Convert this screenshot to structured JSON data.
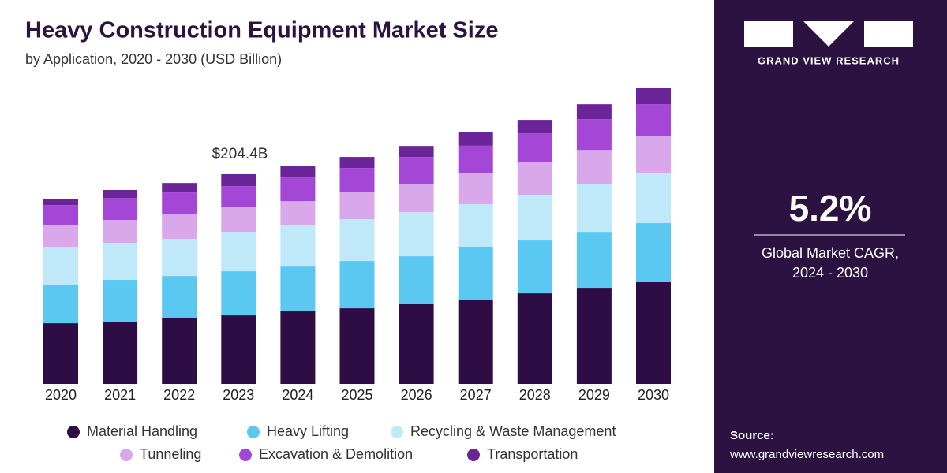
{
  "chart_data": {
    "type": "stacked-bar",
    "title": "Heavy Construction Equipment Market Size",
    "subtitle": "by Application, 2020 - 2030 (USD Billion)",
    "annotation": "$204.4B",
    "categories": [
      "2020",
      "2021",
      "2022",
      "2023",
      "2024",
      "2025",
      "2026",
      "2027",
      "2028",
      "2029",
      "2030"
    ],
    "series": [
      {
        "name": "Material Handling",
        "color": "#2e0d45",
        "values": [
          59.1,
          60.7,
          64.5,
          66.8,
          71.4,
          73.7,
          77.6,
          82.2,
          88.3,
          93.7,
          99.1
        ]
      },
      {
        "name": "Heavy Lifting",
        "color": "#5bc8f2",
        "values": [
          37.6,
          40.7,
          40.7,
          43.0,
          43.0,
          46.1,
          46.8,
          51.5,
          51.5,
          54.5,
          57.6
        ]
      },
      {
        "name": "Recycling & Waste Management",
        "color": "#bfe9f8",
        "values": [
          36.9,
          36.1,
          36.1,
          38.4,
          39.9,
          40.7,
          43.0,
          41.5,
          44.5,
          46.8,
          49.2
        ]
      },
      {
        "name": "Tunneling",
        "color": "#d9a8ea",
        "values": [
          21.5,
          22.3,
          23.8,
          23.8,
          23.8,
          26.9,
          27.6,
          30.0,
          31.5,
          33.0,
          35.3
        ]
      },
      {
        "name": "Excavation & Demolition",
        "color": "#a447d6",
        "values": [
          19.2,
          21.5,
          21.5,
          20.7,
          23.0,
          23.0,
          26.1,
          26.9,
          28.4,
          30.0,
          31.5
        ]
      },
      {
        "name": "Transportation",
        "color": "#6c2598",
        "values": [
          6.1,
          7.7,
          9.2,
          11.7,
          11.5,
          10.8,
          10.8,
          13.1,
          13.1,
          14.6,
          15.4
        ]
      }
    ]
  },
  "side_panel": {
    "brand": "GRAND VIEW RESEARCH",
    "stat": "5.2%",
    "stat_label_1": "Global Market CAGR,",
    "stat_label_2": "2024 - 2030",
    "source_label": "Source:",
    "source_url": "www.grandviewresearch.com"
  }
}
